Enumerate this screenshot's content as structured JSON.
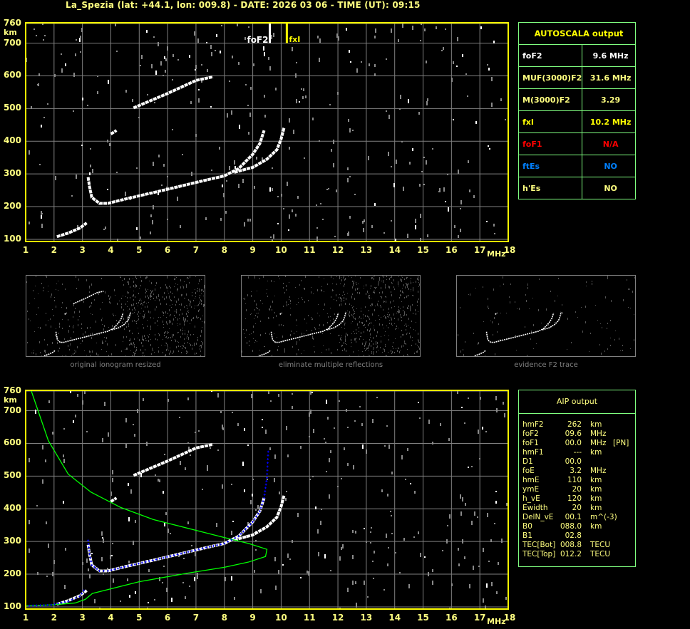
{
  "header": {
    "title": "La_Spezia (lat: +44.1, lon: 009.8) - DATE: 2026 03 06 - TIME (UT): 09:15"
  },
  "autoscala": {
    "title": "AUTOSCALA output",
    "rows": [
      {
        "label": "foF2",
        "value": "9.6 MHz",
        "color": "#ffffff"
      },
      {
        "label": "MUF(3000)F2",
        "value": "31.6 MHz",
        "color": "#ffff80"
      },
      {
        "label": "M(3000)F2",
        "value": "3.29",
        "color": "#ffff80"
      },
      {
        "label": "fxI",
        "value": "10.2 MHz",
        "color": "#ffff00"
      },
      {
        "label": "foF1",
        "value": "N/A",
        "color": "#ff0000"
      },
      {
        "label": "ftEs",
        "value": "NO",
        "color": "#0080ff"
      },
      {
        "label": "h'Es",
        "value": "NO",
        "color": "#ffff80"
      }
    ]
  },
  "aip": {
    "title": "AIP output",
    "rows": [
      {
        "param": "hmF2",
        "value": "262",
        "unit": "km",
        "note": ""
      },
      {
        "param": "foF2",
        "value": "09.6",
        "unit": "MHz",
        "note": ""
      },
      {
        "param": "foF1",
        "value": "00.0",
        "unit": "MHz",
        "note": "[PN]"
      },
      {
        "param": "hmF1",
        "value": "---",
        "unit": "km",
        "note": ""
      },
      {
        "param": "D1",
        "value": "00.0",
        "unit": "",
        "note": ""
      },
      {
        "param": "foE",
        "value": "3.2",
        "unit": "MHz",
        "note": ""
      },
      {
        "param": "hmE",
        "value": "110",
        "unit": "km",
        "note": ""
      },
      {
        "param": "ymE",
        "value": "20",
        "unit": "km",
        "note": ""
      },
      {
        "param": "h_vE",
        "value": "120",
        "unit": "km",
        "note": ""
      },
      {
        "param": "Ewidth",
        "value": "20",
        "unit": "km",
        "note": ""
      },
      {
        "param": "DelN_vE",
        "value": "00.1",
        "unit": "m^(-3)",
        "note": ""
      },
      {
        "param": "B0",
        "value": "088.0",
        "unit": "km",
        "note": ""
      },
      {
        "param": "B1",
        "value": "02.8",
        "unit": "",
        "note": ""
      },
      {
        "param": "TEC[Bot]",
        "value": "008.8",
        "unit": "TECU",
        "note": ""
      },
      {
        "param": "TEC[Top]",
        "value": "012.2",
        "unit": "TECU",
        "note": ""
      }
    ]
  },
  "thumbnails": [
    {
      "caption": "original ionogram resized",
      "show_multiple": true,
      "noise": "high"
    },
    {
      "caption": "eliminate multiple reflections",
      "show_multiple": false,
      "noise": "high"
    },
    {
      "caption": "evidence F2 trace",
      "show_multiple": false,
      "noise": "low"
    }
  ],
  "colors": {
    "axis_text": "#ffff80",
    "frame": "#ffff00",
    "grid": "#808080",
    "table_border": "#80ff80",
    "trace": "#ffffff",
    "fit": "#0000ff",
    "profile": "#00ff00"
  },
  "chart_data": [
    {
      "type": "scatter",
      "title": "",
      "xlabel": "MHz",
      "ylabel": "km",
      "xlim": [
        1,
        18
      ],
      "ylim": [
        100,
        760
      ],
      "grid": true,
      "xticks": [
        "1",
        "2",
        "3",
        "4",
        "5",
        "6",
        "7",
        "8",
        "9",
        "10",
        "11",
        "12",
        "13",
        "14",
        "15",
        "16",
        "17",
        "18"
      ],
      "yticks": [
        "760",
        "700",
        "600",
        "500",
        "400",
        "300",
        "200",
        "100"
      ],
      "markers": [
        {
          "label": "foF2",
          "x": 9.6,
          "color": "#ffffff"
        },
        {
          "label": "fxI",
          "x": 10.2,
          "color": "#ffff00"
        }
      ],
      "traces": {
        "o_trace": [
          [
            3.2,
            290
          ],
          [
            3.25,
            261
          ],
          [
            3.33,
            228
          ],
          [
            3.6,
            210
          ],
          [
            3.9,
            210
          ],
          [
            4.6,
            225
          ],
          [
            5.85,
            250
          ],
          [
            7.1,
            276
          ],
          [
            8.0,
            294
          ],
          [
            8.5,
            316
          ],
          [
            9.0,
            360
          ],
          [
            9.25,
            393
          ],
          [
            9.4,
            433
          ]
        ],
        "x_trace": [
          [
            8.35,
            305
          ],
          [
            9.0,
            320
          ],
          [
            9.5,
            345
          ],
          [
            9.85,
            374
          ],
          [
            10.0,
            407
          ],
          [
            10.1,
            440
          ]
        ],
        "e_trace": [
          [
            2.1,
            108
          ],
          [
            2.5,
            119
          ],
          [
            2.9,
            134
          ],
          [
            3.15,
            150
          ]
        ],
        "multiple_hop": [
          [
            4.8,
            502
          ],
          [
            6.0,
            546
          ],
          [
            7.0,
            586
          ],
          [
            7.6,
            597
          ]
        ],
        "streak": [
          [
            4.0,
            422
          ],
          [
            4.2,
            433
          ]
        ]
      }
    },
    {
      "type": "scatter",
      "title": "",
      "xlabel": "MHz",
      "ylabel": "km",
      "xlim": [
        1,
        18
      ],
      "ylim": [
        100,
        760
      ],
      "grid": true,
      "xticks": [
        "1",
        "2",
        "3",
        "4",
        "5",
        "6",
        "7",
        "8",
        "9",
        "10",
        "11",
        "12",
        "13",
        "14",
        "15",
        "16",
        "17",
        "18"
      ],
      "yticks": [
        "760",
        "700",
        "600",
        "500",
        "400",
        "300",
        "200",
        "100"
      ],
      "aip_fit": [
        [
          1.0,
          103
        ],
        [
          1.9,
          106
        ],
        [
          2.5,
          117
        ],
        [
          2.9,
          132
        ],
        [
          3.05,
          150
        ],
        [
          3.2,
          303
        ],
        [
          3.25,
          261
        ],
        [
          3.33,
          228
        ],
        [
          3.6,
          210
        ],
        [
          3.9,
          210
        ],
        [
          4.6,
          225
        ],
        [
          5.85,
          250
        ],
        [
          7.1,
          276
        ],
        [
          8.0,
          294
        ],
        [
          8.5,
          316
        ],
        [
          9.0,
          360
        ],
        [
          9.25,
          393
        ],
        [
          9.4,
          433
        ],
        [
          9.5,
          495
        ],
        [
          9.55,
          586
        ]
      ],
      "profile": [
        [
          1.2,
          760
        ],
        [
          1.8,
          608
        ],
        [
          2.5,
          506
        ],
        [
          3.3,
          451
        ],
        [
          4.35,
          404
        ],
        [
          5.5,
          367
        ],
        [
          7.0,
          334
        ],
        [
          8.0,
          312
        ],
        [
          8.85,
          294
        ],
        [
          9.5,
          276
        ],
        [
          9.45,
          254
        ],
        [
          8.85,
          237
        ],
        [
          8.0,
          221
        ],
        [
          6.7,
          203
        ],
        [
          5.0,
          177
        ],
        [
          3.35,
          141
        ],
        [
          3.1,
          123
        ],
        [
          2.75,
          112
        ],
        [
          1.9,
          106
        ],
        [
          1.0,
          103
        ]
      ]
    }
  ]
}
